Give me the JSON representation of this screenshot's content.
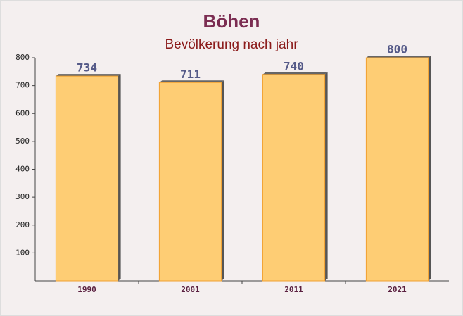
{
  "chart_data": {
    "type": "bar",
    "title": "Böhen",
    "subtitle": "Bevölkerung nach jahr",
    "categories": [
      "1990",
      "2001",
      "2011",
      "2021"
    ],
    "values": [
      734,
      711,
      740,
      800
    ],
    "color": "#ffc966",
    "ylim": [
      0,
      800
    ],
    "yticks": [
      100,
      200,
      300,
      400,
      500,
      600,
      700,
      800
    ]
  }
}
